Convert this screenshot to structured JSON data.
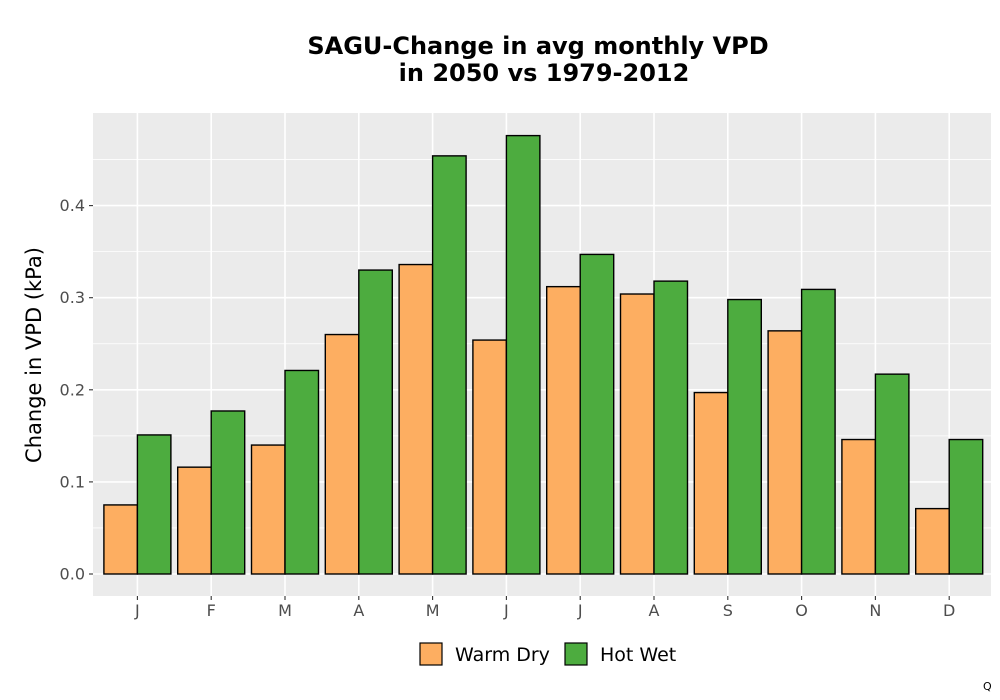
{
  "chart_data": {
    "type": "bar",
    "title_lines": [
      "SAGU-Change in avg monthly VPD",
      "in 2050 vs 1979-2012"
    ],
    "xlabel": "",
    "ylabel": "Change in VPD (kPa)",
    "categories": [
      "J",
      "F",
      "M",
      "A",
      "M",
      "J",
      "J",
      "A",
      "S",
      "O",
      "N",
      "D"
    ],
    "series": [
      {
        "name": "Warm Dry",
        "color": "#fdae61",
        "values": [
          0.075,
          0.116,
          0.14,
          0.26,
          0.336,
          0.254,
          0.312,
          0.304,
          0.197,
          0.264,
          0.146,
          0.071
        ]
      },
      {
        "name": "Hot Wet",
        "color": "#4dac3f",
        "values": [
          0.151,
          0.177,
          0.221,
          0.33,
          0.454,
          0.476,
          0.347,
          0.318,
          0.298,
          0.309,
          0.217,
          0.146
        ]
      }
    ],
    "yticks": [
      0.0,
      0.1,
      0.2,
      0.3,
      0.4
    ],
    "ytick_labels": [
      "0.0",
      "0.1",
      "0.2",
      "0.3",
      "0.4"
    ],
    "ylim": [
      -0.024,
      0.5
    ],
    "grid": true,
    "legend_position": "bottom",
    "panel_background": "#ebebeb"
  },
  "corner_mark": "Q"
}
